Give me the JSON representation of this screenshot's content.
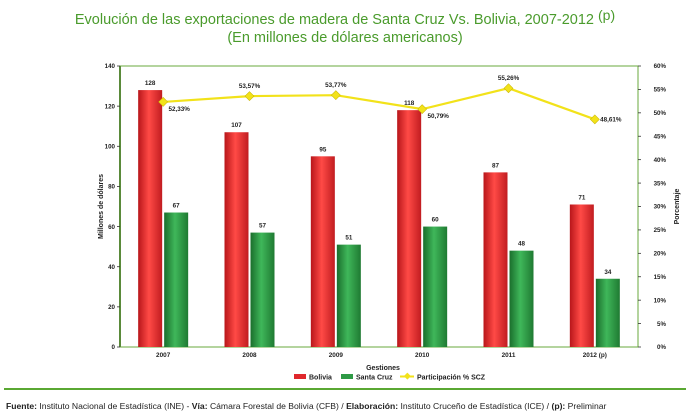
{
  "title": {
    "line1": "Evolución de las exportaciones de madera de Santa Cruz Vs. Bolivia, 2007-2012",
    "line1_sup": "(p)",
    "line2": "(En millones de dólares americanos)"
  },
  "colors": {
    "title": "#4a9b2c",
    "bolivia": "#e0282c",
    "santa_cruz": "#2e9a45",
    "participacion": "#f2e21a",
    "plot_border": "#6aaa3c"
  },
  "chart_data": {
    "type": "bar",
    "categories": [
      "2007",
      "2008",
      "2009",
      "2010",
      "2011",
      "2012 (p)"
    ],
    "series": [
      {
        "name": "Bolivia",
        "values": [
          128,
          107,
          95,
          118,
          87,
          71
        ],
        "labels": [
          "128",
          "107",
          "95",
          "118",
          "87",
          "71"
        ]
      },
      {
        "name": "Santa Cruz",
        "values": [
          67,
          57,
          51,
          60,
          48,
          34
        ],
        "labels": [
          "67",
          "57",
          "51",
          "60",
          "48",
          "34"
        ]
      }
    ],
    "line_series": {
      "name": "Participación % SCZ",
      "axis": "right",
      "values": [
        52.33,
        53.57,
        53.77,
        50.79,
        55.26,
        48.61
      ],
      "labels": [
        "52,33%",
        "53,57%",
        "53,77%",
        "50,79%",
        "55,26%",
        "48,61%"
      ]
    },
    "xlabel": "Gestiones",
    "ylabel": "Millones de dólares",
    "y2label": "Porcentaje",
    "ylim": [
      0,
      140
    ],
    "yticks": [
      "0",
      "20",
      "40",
      "60",
      "80",
      "100",
      "120",
      "140"
    ],
    "y2lim": [
      0,
      60
    ],
    "y2ticks": [
      "0%",
      "5%",
      "10%",
      "15%",
      "20%",
      "25%",
      "30%",
      "35%",
      "40%",
      "45%",
      "50%",
      "55%",
      "60%"
    ],
    "grid": false,
    "legend": "bottom"
  },
  "source": {
    "fuente_label": "Fuente:",
    "fuente": " Instituto Nacional de Estadística (INE) - ",
    "via_label": "Vía:",
    "via": " Cámara Forestal de Bolivia (CFB) / ",
    "elab_label": "Elaboración:",
    "elab": " Instituto Cruceño de Estadística (ICE) / ",
    "p_label": "(p):",
    "p": " Preliminar"
  }
}
